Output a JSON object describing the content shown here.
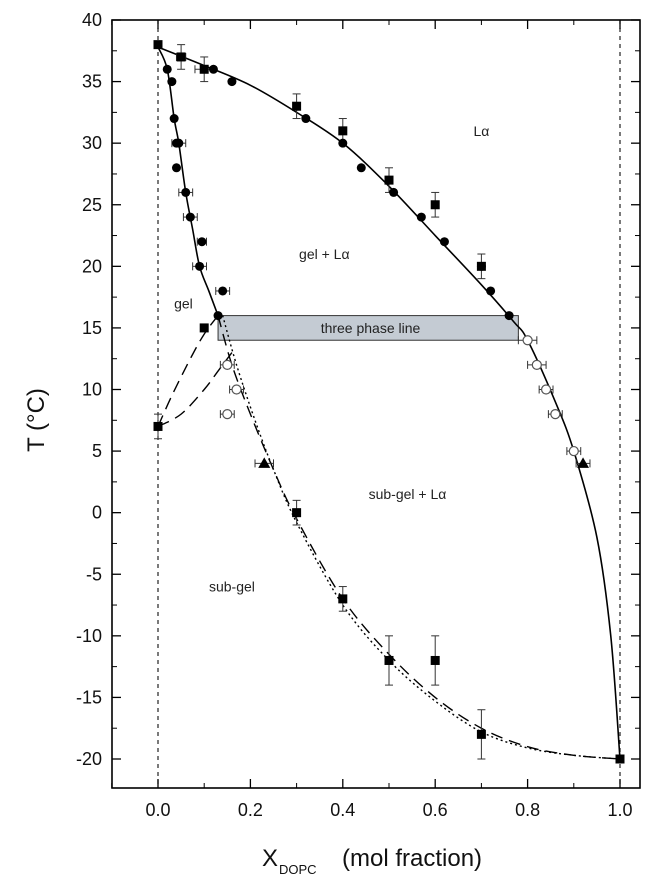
{
  "chart_data": {
    "type": "scatter",
    "title": "",
    "xlabel": "X",
    "xlabel_subscript": "DOPC",
    "xlabel_units": "(mol fraction)",
    "ylabel": "T  (°C)",
    "xlim": [
      -0.1,
      1.08
    ],
    "ylim": [
      -22,
      40
    ],
    "xticks": [
      0.0,
      0.2,
      0.4,
      0.6,
      0.8,
      1.0
    ],
    "xtick_labels": [
      "0.0",
      "0.2",
      "0.4",
      "0.6",
      "0.8",
      "1.0"
    ],
    "yticks": [
      -20,
      -15,
      -10,
      -5,
      0,
      5,
      10,
      15,
      20,
      25,
      30,
      35,
      40
    ],
    "ytick_labels": [
      "-20",
      "-15",
      "-10",
      "-5",
      "0",
      "5",
      "10",
      "15",
      "20",
      "25",
      "30",
      "35",
      "40"
    ],
    "grid": false,
    "legend": "none",
    "vertical_reference_lines": [
      0.0,
      1.0
    ],
    "series": [
      {
        "marker": "circle-filled",
        "points": [
          [
            0.02,
            36
          ],
          [
            0.03,
            35
          ],
          [
            0.035,
            32
          ],
          [
            0.04,
            30
          ],
          [
            0.045,
            30
          ],
          [
            0.04,
            28
          ],
          [
            0.06,
            26
          ],
          [
            0.07,
            24
          ],
          [
            0.095,
            22
          ],
          [
            0.09,
            20
          ],
          [
            0.14,
            18
          ],
          [
            0.13,
            16
          ],
          [
            0.12,
            36
          ],
          [
            0.16,
            35
          ],
          [
            0.32,
            32
          ],
          [
            0.4,
            30
          ],
          [
            0.44,
            28
          ],
          [
            0.51,
            26
          ],
          [
            0.57,
            24
          ],
          [
            0.62,
            22
          ],
          [
            0.7,
            20
          ],
          [
            0.72,
            18
          ],
          [
            0.76,
            16
          ]
        ]
      },
      {
        "marker": "square-filled",
        "points": [
          [
            0.0,
            38
          ],
          [
            0.05,
            37
          ],
          [
            0.1,
            36
          ],
          [
            0.3,
            33
          ],
          [
            0.4,
            31
          ],
          [
            0.5,
            27
          ],
          [
            0.6,
            25
          ],
          [
            0.7,
            20
          ],
          [
            0.1,
            15
          ],
          [
            0.0,
            7
          ],
          [
            0.3,
            0
          ],
          [
            0.4,
            -7
          ],
          [
            0.5,
            -12
          ],
          [
            0.6,
            -12
          ],
          [
            0.7,
            -18
          ],
          [
            1.0,
            -20
          ]
        ]
      },
      {
        "marker": "circle-open",
        "points": [
          [
            0.15,
            12
          ],
          [
            0.17,
            10
          ],
          [
            0.15,
            8
          ],
          [
            0.8,
            14
          ],
          [
            0.82,
            12
          ],
          [
            0.84,
            10
          ],
          [
            0.86,
            8
          ],
          [
            0.9,
            5
          ]
        ]
      },
      {
        "marker": "triangle-filled",
        "points": [
          [
            0.23,
            4
          ],
          [
            0.92,
            4
          ]
        ]
      }
    ],
    "curves": [
      {
        "style": "solid",
        "points": [
          [
            0.0,
            37.8
          ],
          [
            0.1,
            36.3
          ],
          [
            0.2,
            34.7
          ],
          [
            0.3,
            32.5
          ],
          [
            0.4,
            30
          ],
          [
            0.5,
            26.5
          ],
          [
            0.6,
            22.5
          ],
          [
            0.7,
            18.5
          ],
          [
            0.77,
            15.5
          ],
          [
            0.8,
            14
          ],
          [
            0.86,
            9
          ],
          [
            0.9,
            5
          ],
          [
            0.95,
            -2
          ],
          [
            0.98,
            -10
          ],
          [
            1.0,
            -20
          ]
        ]
      },
      {
        "style": "solid",
        "points": [
          [
            0.0,
            37.8
          ],
          [
            0.02,
            36
          ],
          [
            0.035,
            32
          ],
          [
            0.045,
            30
          ],
          [
            0.06,
            26
          ],
          [
            0.075,
            23
          ],
          [
            0.09,
            20
          ],
          [
            0.11,
            18
          ],
          [
            0.13,
            16
          ]
        ]
      },
      {
        "style": "dashed",
        "points": [
          [
            0.0,
            7
          ],
          [
            0.05,
            8
          ],
          [
            0.1,
            10
          ],
          [
            0.13,
            11.5
          ],
          [
            0.16,
            13
          ]
        ]
      },
      {
        "style": "dashed",
        "points": [
          [
            0.0,
            7
          ],
          [
            0.03,
            9.5
          ],
          [
            0.07,
            12.5
          ],
          [
            0.1,
            14.5
          ],
          [
            0.13,
            16
          ]
        ]
      },
      {
        "style": "dashed",
        "points": [
          [
            0.13,
            16
          ],
          [
            0.16,
            12
          ],
          [
            0.2,
            8
          ],
          [
            0.25,
            3.5
          ],
          [
            0.3,
            -0.5
          ],
          [
            0.4,
            -7
          ],
          [
            0.5,
            -11.5
          ],
          [
            0.6,
            -15
          ],
          [
            0.7,
            -17.5
          ],
          [
            0.8,
            -19
          ],
          [
            0.9,
            -19.7
          ],
          [
            1.0,
            -20
          ]
        ]
      },
      {
        "style": "dotted",
        "points": [
          [
            0.14,
            16
          ],
          [
            0.17,
            12
          ],
          [
            0.21,
            7.5
          ],
          [
            0.25,
            3.5
          ],
          [
            0.3,
            -0.8
          ],
          [
            0.4,
            -7.5
          ],
          [
            0.5,
            -12
          ],
          [
            0.6,
            -15.3
          ],
          [
            0.7,
            -17.8
          ],
          [
            0.8,
            -19.1
          ],
          [
            0.9,
            -19.7
          ],
          [
            1.0,
            -20
          ]
        ]
      }
    ],
    "error_bars": [
      {
        "x": 0.05,
        "y": 37,
        "dy": 1,
        "dx": 0.01
      },
      {
        "x": 0.1,
        "y": 36,
        "dy": 1,
        "dx": 0.02
      },
      {
        "x": 0.3,
        "y": 33,
        "dy": 1,
        "dx": 0.0
      },
      {
        "x": 0.4,
        "y": 31,
        "dy": 1,
        "dx": 0.0
      },
      {
        "x": 0.5,
        "y": 27,
        "dy": 1,
        "dx": 0.0
      },
      {
        "x": 0.6,
        "y": 25,
        "dy": 1,
        "dx": 0.0
      },
      {
        "x": 0.7,
        "y": 20,
        "dy": 1,
        "dx": 0.0
      },
      {
        "x": 0.045,
        "y": 30,
        "dy": 0,
        "dx": 0.015
      },
      {
        "x": 0.06,
        "y": 26,
        "dy": 0,
        "dx": 0.015
      },
      {
        "x": 0.07,
        "y": 24,
        "dy": 0,
        "dx": 0.015
      },
      {
        "x": 0.09,
        "y": 20,
        "dy": 0,
        "dx": 0.015
      },
      {
        "x": 0.095,
        "y": 22,
        "dy": 0,
        "dx": 0.01
      },
      {
        "x": 0.14,
        "y": 18,
        "dy": 0,
        "dx": 0.015
      },
      {
        "x": 0.15,
        "y": 12,
        "dy": 0,
        "dx": 0.015
      },
      {
        "x": 0.17,
        "y": 10,
        "dy": 0,
        "dx": 0.015
      },
      {
        "x": 0.15,
        "y": 8,
        "dy": 0,
        "dx": 0.015
      },
      {
        "x": 0.8,
        "y": 14,
        "dy": 0,
        "dx": 0.02
      },
      {
        "x": 0.82,
        "y": 12,
        "dy": 0,
        "dx": 0.02
      },
      {
        "x": 0.84,
        "y": 10,
        "dy": 0,
        "dx": 0.015
      },
      {
        "x": 0.86,
        "y": 8,
        "dy": 0,
        "dx": 0.015
      },
      {
        "x": 0.9,
        "y": 5,
        "dy": 0,
        "dx": 0.015
      },
      {
        "x": 0.92,
        "y": 4,
        "dy": 0,
        "dx": 0.015
      },
      {
        "x": 0.23,
        "y": 4,
        "dy": 0,
        "dx": 0.02
      },
      {
        "x": 0.0,
        "y": 7,
        "dy": 1,
        "dx": 0.0
      },
      {
        "x": 0.3,
        "y": 0,
        "dy": 1,
        "dx": 0.0
      },
      {
        "x": 0.4,
        "y": -7,
        "dy": 1,
        "dx": 0.0
      },
      {
        "x": 0.5,
        "y": -12,
        "dy": 2,
        "dx": 0.0
      },
      {
        "x": 0.6,
        "y": -12,
        "dy": 2,
        "dx": 0.0
      },
      {
        "x": 0.7,
        "y": -18,
        "dy": 2,
        "dx": 0.0
      }
    ],
    "band": {
      "label": "three phase line",
      "x_start": 0.13,
      "x_end": 0.78,
      "y_low": 14,
      "y_high": 16,
      "color": "#c4cbd3"
    },
    "annotations": [
      {
        "text": "Lα",
        "x": 0.7,
        "y": 31
      },
      {
        "text": "gel + Lα",
        "x": 0.36,
        "y": 21
      },
      {
        "text": "gel",
        "x": 0.055,
        "y": 17
      },
      {
        "text": "three phase line",
        "x": 0.46,
        "y": 15
      },
      {
        "text": "sub-gel + Lα",
        "x": 0.54,
        "y": 1.5
      },
      {
        "text": "sub-gel",
        "x": 0.16,
        "y": -6
      }
    ],
    "colors": {
      "marker": "#000000",
      "line": "#000000",
      "band": "#c4cbd3"
    }
  }
}
